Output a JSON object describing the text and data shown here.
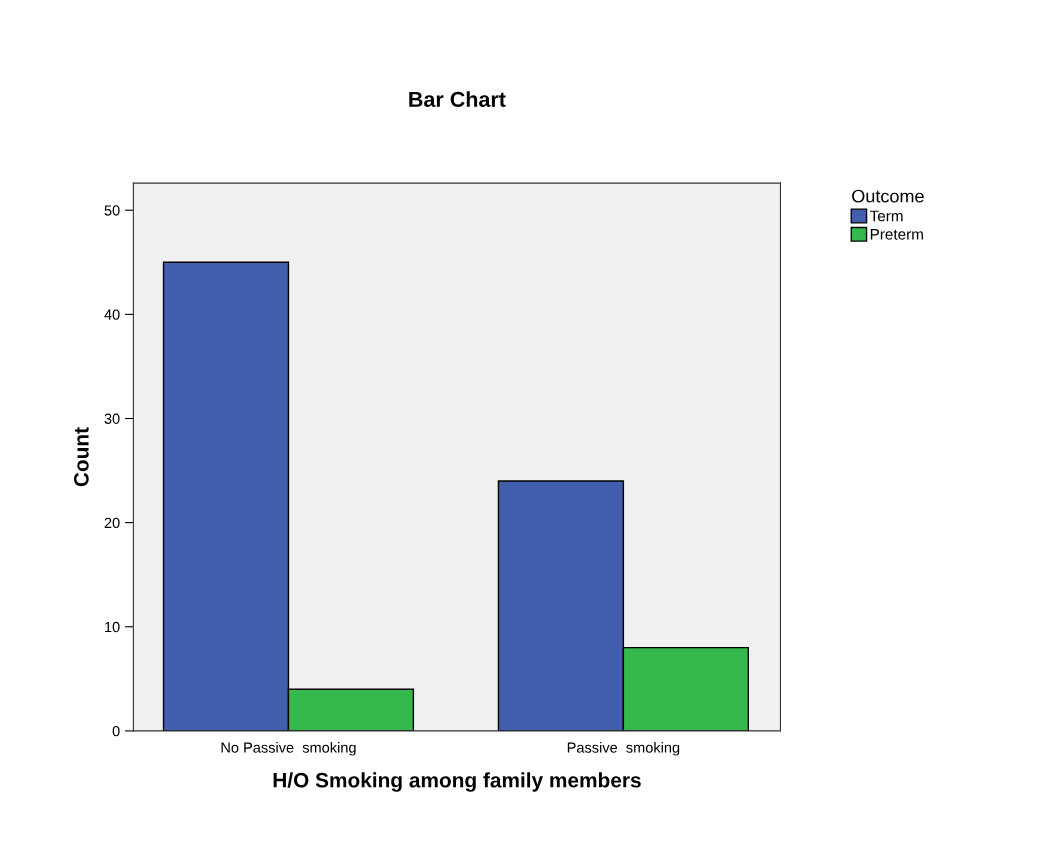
{
  "chart_data": {
    "type": "bar",
    "title": "Bar Chart",
    "xlabel": "H/O Smoking among family members",
    "ylabel": "Count",
    "legend_title": "Outcome",
    "categories": [
      "No Passive  smoking",
      "Passive  smoking"
    ],
    "series": [
      {
        "name": "Term",
        "color": "#425fad",
        "values": [
          45,
          24
        ]
      },
      {
        "name": "Preterm",
        "color": "#35b94c",
        "values": [
          4,
          8
        ]
      }
    ],
    "ylim": [
      0,
      52.6
    ],
    "yticks": [
      0,
      10,
      20,
      30,
      40,
      50
    ],
    "grid": false,
    "legend": "top right"
  }
}
